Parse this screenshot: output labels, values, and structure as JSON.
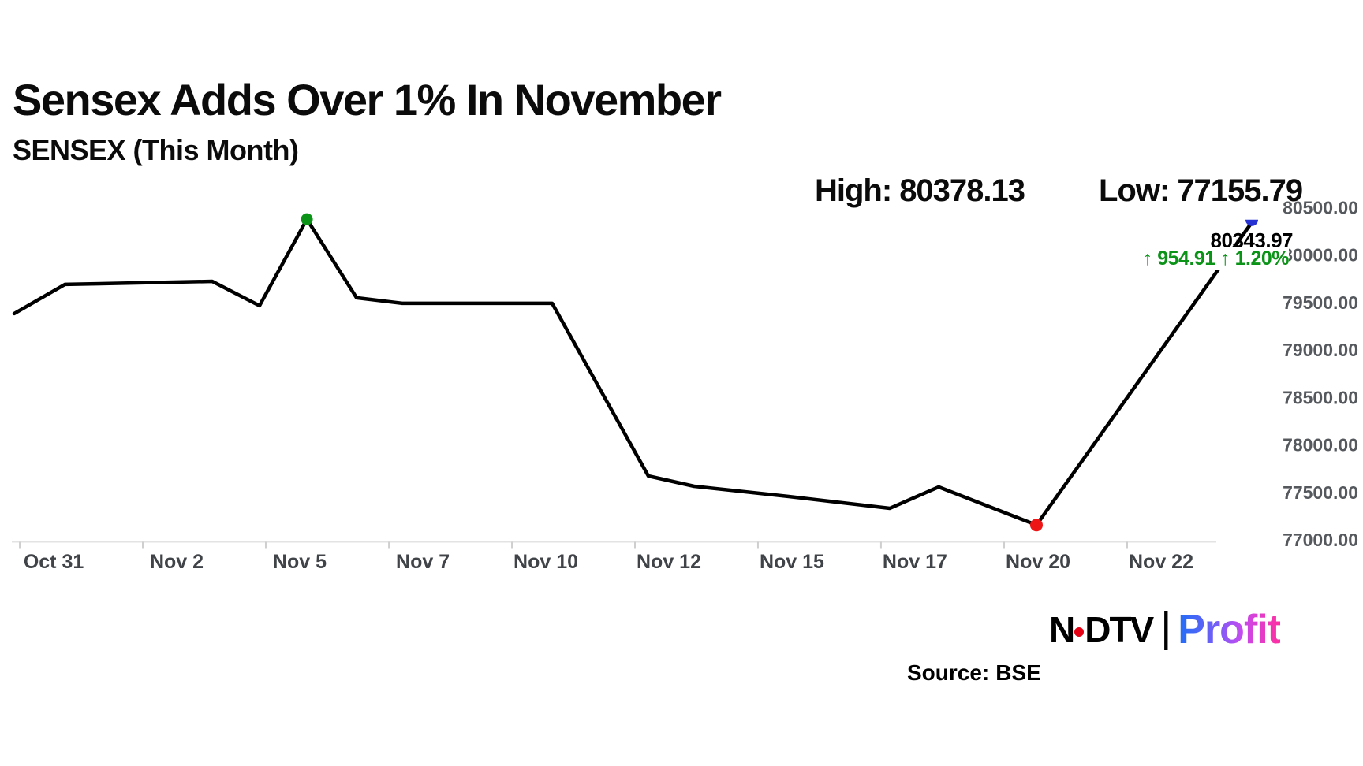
{
  "header": {
    "title": "Sensex Adds Over 1% In November",
    "subtitle": "SENSEX (This Month)"
  },
  "stats": {
    "high_label": "High:",
    "high_value": "80378.13",
    "low_label": "Low:",
    "low_value": "77155.79"
  },
  "annotation": {
    "last_price": "80343.97",
    "change_text": "↑ 954.91 ↑ 1.20%"
  },
  "branding": {
    "wordmark_part1": "N",
    "wordmark_part2": "DTV",
    "separator": "|",
    "product": "Profit"
  },
  "footer": {
    "source_label": "Source:",
    "source_value": "BSE"
  },
  "colors": {
    "line": "#000000",
    "high_marker": "#0b9318",
    "low_marker": "#ed1515",
    "last_marker": "#2632d2",
    "change_text": "#0b9318",
    "axis_line": "#e3e3e3",
    "tick": "#cfcfcf",
    "x_label": "#404448",
    "y_label": "#55595e",
    "ndtv_dot": "#e60014"
  },
  "chart_data": {
    "type": "line",
    "title": "SENSEX (This Month)",
    "high": 80378.13,
    "low": 77155.79,
    "last_close": 80343.97,
    "change": 954.91,
    "change_pct": "1.20%",
    "grid": false,
    "legend": false,
    "ylim": [
      77000,
      80500
    ],
    "y_ticks": [
      {
        "value": 80500,
        "label": "80500.00"
      },
      {
        "value": 80000,
        "label": "80000.00"
      },
      {
        "value": 79500,
        "label": "79500.00"
      },
      {
        "value": 79000,
        "label": "79000.00"
      },
      {
        "value": 78500,
        "label": "78500.00"
      },
      {
        "value": 78000,
        "label": "78000.00"
      },
      {
        "value": 77500,
        "label": "77500.00"
      },
      {
        "value": 77000,
        "label": "77000.00"
      }
    ],
    "x_ticks": [
      {
        "label": "Oct 31",
        "x": 0.0319
      },
      {
        "label": "Nov 2",
        "x": 0.1313
      },
      {
        "label": "Nov 5",
        "x": 0.2307
      },
      {
        "label": "Nov 7",
        "x": 0.3302
      },
      {
        "label": "Nov 10",
        "x": 0.4296
      },
      {
        "label": "Nov 12",
        "x": 0.529
      },
      {
        "label": "Nov 15",
        "x": 0.6284
      },
      {
        "label": "Nov 17",
        "x": 0.7278
      },
      {
        "label": "Nov 20",
        "x": 0.8273
      },
      {
        "label": "Nov 22",
        "x": 0.9267
      }
    ],
    "points": [
      {
        "date": "Oct 31",
        "value": 79384,
        "x": 0.0
      },
      {
        "date": "Nov 1",
        "value": 79691,
        "x": 0.041
      },
      {
        "date": "Nov 4",
        "value": 79724,
        "x": 0.16
      },
      {
        "date": "Nov 5",
        "value": 79467,
        "x": 0.1982
      },
      {
        "date": "Nov 6",
        "value": 80378.13,
        "x": 0.2365,
        "marker": "high"
      },
      {
        "date": "Nov 7",
        "value": 79550,
        "x": 0.2767
      },
      {
        "date": "Nov 8",
        "value": 79492,
        "x": 0.3136
      },
      {
        "date": "Nov 11",
        "value": 79492,
        "x": 0.4347
      },
      {
        "date": "Nov 12",
        "value": 77673,
        "x": 0.5124
      },
      {
        "date": "Nov 13",
        "value": 77565,
        "x": 0.5494
      },
      {
        "date": "Nov 14",
        "value": 77457,
        "x": 0.6259
      },
      {
        "date": "Nov 17",
        "value": 77332,
        "x": 0.7075
      },
      {
        "date": "Nov 18",
        "value": 77557,
        "x": 0.747
      },
      {
        "date": "Nov 20",
        "value": 77155.79,
        "x": 0.826,
        "marker": "low"
      },
      {
        "date": "Nov 24",
        "value": 80343.97,
        "x": 1.0,
        "marker": "last"
      }
    ]
  }
}
